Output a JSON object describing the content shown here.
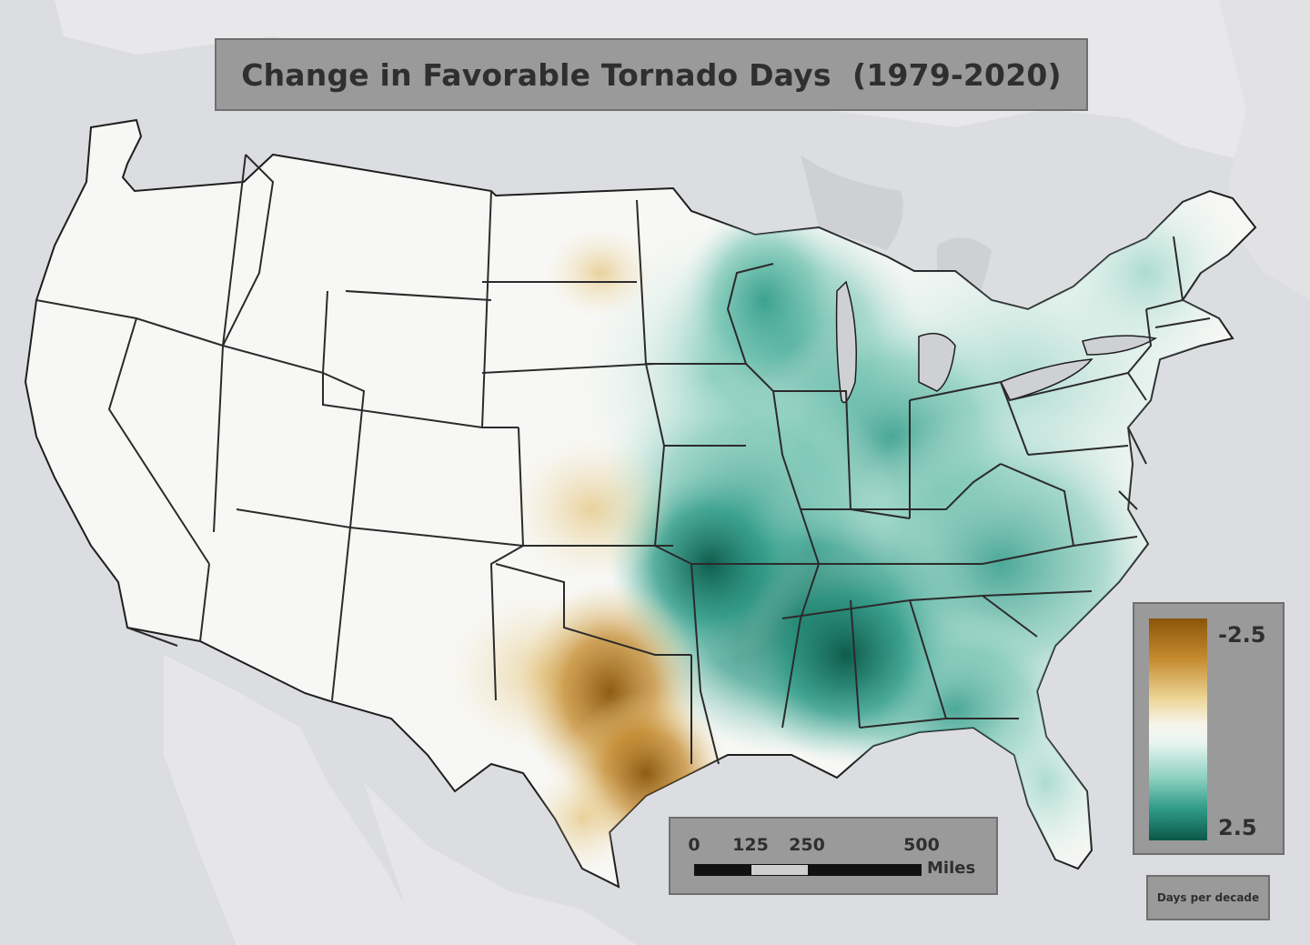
{
  "map": {
    "title": "Change in Favorable Tornado Days  (1979-2020)",
    "legend": {
      "min_label": "-2.5",
      "max_label": "2.5",
      "units": "Days per decade",
      "colors": [
        "#8a5509",
        "#c48a2e",
        "#ecd596",
        "#f7f5ec",
        "#8cd0c0",
        "#2e9a87",
        "#0b5848"
      ]
    },
    "scale_bar": {
      "ticks": [
        "0",
        "125",
        "250",
        "500"
      ],
      "units": "Miles"
    },
    "colors": {
      "land": "#f7f7f5",
      "background": "#dcdde0",
      "water": "#cfd0d4",
      "panel": "#9a9a9a",
      "border": "#2b2b2b"
    }
  }
}
